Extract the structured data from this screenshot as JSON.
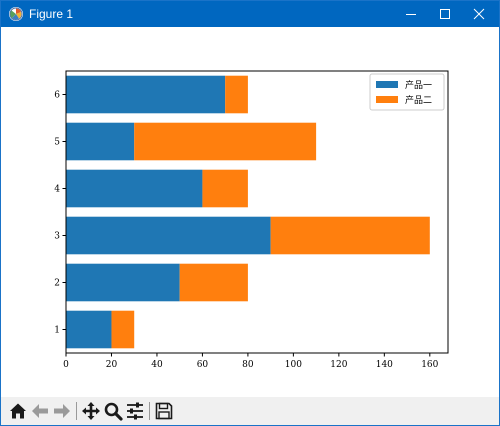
{
  "window": {
    "title": "Figure 1",
    "titlebar_color": "#0067c0"
  },
  "toolbar": {
    "buttons": [
      {
        "icon": "home-icon"
      },
      {
        "icon": "back-arrow-icon"
      },
      {
        "icon": "forward-arrow-icon"
      },
      {
        "icon": "pan-move-icon"
      },
      {
        "icon": "zoom-magnifier-icon"
      },
      {
        "icon": "configure-subplots-icon"
      },
      {
        "icon": "save-floppy-icon"
      }
    ]
  },
  "chart_data": {
    "type": "bar",
    "orientation": "horizontal",
    "stacked": true,
    "categories": [
      "1",
      "2",
      "3",
      "4",
      "5",
      "6"
    ],
    "series": [
      {
        "name": "产品一",
        "values": [
          20,
          50,
          90,
          60,
          30,
          70
        ],
        "color": "#1f77b4"
      },
      {
        "name": "产品二",
        "values": [
          10,
          30,
          70,
          20,
          80,
          10
        ],
        "color": "#ff7f0e"
      }
    ],
    "xlim": [
      0,
      168
    ],
    "xticks": [
      0,
      20,
      40,
      60,
      80,
      100,
      120,
      140,
      160
    ],
    "grid": false,
    "legend_position": "top-right"
  }
}
